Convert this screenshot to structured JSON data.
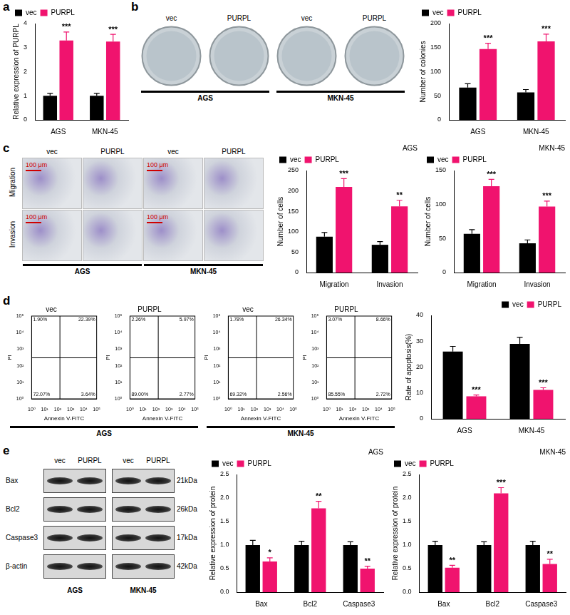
{
  "panel_letters": [
    "a",
    "b",
    "c",
    "d",
    "e"
  ],
  "chart_data": [
    {
      "type": "bar",
      "ylabel": "Relative expression of PURPL",
      "categories": [
        "AGS",
        "MKN-45"
      ],
      "series": [
        {
          "name": "vec",
          "color": "#000000",
          "values": [
            1,
            1
          ],
          "errors": [
            0.1,
            0.1
          ]
        },
        {
          "name": "PURPL",
          "color": "#f0136e",
          "values": [
            3.3,
            3.25
          ],
          "errors": [
            0.35,
            0.3
          ],
          "significance": [
            "***",
            "***"
          ]
        }
      ],
      "ylim": [
        0,
        4
      ],
      "yticks": [
        0,
        1,
        2,
        3,
        4
      ],
      "grid": false,
      "legend": "top-left"
    },
    {
      "type": "bar",
      "ylabel": "Number of colonies",
      "categories": [
        "AGS",
        "MKN-45"
      ],
      "series": [
        {
          "name": "vec",
          "color": "#000000",
          "values": [
            67,
            57
          ],
          "errors": [
            8,
            6
          ]
        },
        {
          "name": "PURPL",
          "color": "#f0136e",
          "values": [
            147,
            163
          ],
          "errors": [
            12,
            15
          ],
          "significance": [
            "***",
            "***"
          ]
        }
      ],
      "ylim": [
        0,
        200
      ],
      "yticks": [
        0,
        50,
        100,
        150,
        200
      ],
      "grid": false,
      "legend": "top-left"
    },
    {
      "type": "bar",
      "title": "AGS",
      "ylabel": "Number of cells",
      "categories": [
        "Migration",
        "Invasion"
      ],
      "series": [
        {
          "name": "vec",
          "color": "#000000",
          "values": [
            88,
            68
          ],
          "errors": [
            10,
            8
          ]
        },
        {
          "name": "PURPL",
          "color": "#f0136e",
          "values": [
            210,
            162
          ],
          "errors": [
            20,
            15
          ],
          "significance": [
            "***",
            "**"
          ]
        }
      ],
      "ylim": [
        0,
        250
      ],
      "yticks": [
        0,
        50,
        100,
        150,
        200,
        250
      ],
      "grid": false,
      "legend": "top-left"
    },
    {
      "type": "bar",
      "title": "MKN-45",
      "ylabel": "Number of cells",
      "categories": [
        "Migration",
        "Invasion"
      ],
      "series": [
        {
          "name": "vec",
          "color": "#000000",
          "values": [
            57,
            43
          ],
          "errors": [
            6,
            5
          ]
        },
        {
          "name": "PURPL",
          "color": "#f0136e",
          "values": [
            127,
            97
          ],
          "errors": [
            10,
            8
          ],
          "significance": [
            "***",
            "***"
          ]
        }
      ],
      "ylim": [
        0,
        150
      ],
      "yticks": [
        0,
        50,
        100,
        150
      ],
      "grid": false,
      "legend": "top-left"
    },
    {
      "type": "scatter",
      "title": "vec",
      "xlabel": "Annexin V-FITC",
      "ylabel": "PI",
      "log": true,
      "gate": {
        "x": 150,
        "y": 300
      },
      "quadrants": [
        {
          "position": "upper_left",
          "value": 1.9,
          "label": "1.90%"
        },
        {
          "position": "upper_right",
          "value": 22.39,
          "label": "22.39%"
        },
        {
          "position": "lower_left",
          "value": 72.07,
          "label": "72.07%"
        },
        {
          "position": "lower_right",
          "value": 3.64,
          "label": "3.64%"
        }
      ],
      "xlim": [
        1,
        100000
      ],
      "ylim": [
        1,
        100000
      ],
      "xticks": [
        {
          "value": 1,
          "label": "10⁰"
        },
        {
          "value": 10,
          "label": "10¹"
        },
        {
          "value": 100,
          "label": "10²"
        },
        {
          "value": 1000,
          "label": "10³"
        },
        {
          "value": 10000,
          "label": "10⁴"
        },
        {
          "value": 100000,
          "label": "10⁵"
        }
      ],
      "yticks": [
        {
          "value": 1,
          "label": "10⁰"
        },
        {
          "value": 10,
          "label": "10¹"
        },
        {
          "value": 100,
          "label": "10²"
        },
        {
          "value": 1000,
          "label": "10³"
        },
        {
          "value": 10000,
          "label": "10⁴"
        },
        {
          "value": 100000,
          "label": "10⁵"
        }
      ],
      "grid": false
    },
    {
      "type": "scatter",
      "title": "PURPL",
      "xlabel": "Annexin V-FITC",
      "ylabel": "PI",
      "log": true,
      "gate": {
        "x": 150,
        "y": 300
      },
      "quadrants": [
        {
          "position": "upper_left",
          "value": 2.26,
          "label": "2.26%"
        },
        {
          "position": "upper_right",
          "value": 5.97,
          "label": "5.97%"
        },
        {
          "position": "lower_left",
          "value": 89.0,
          "label": "89.00%"
        },
        {
          "position": "lower_right",
          "value": 2.77,
          "label": "2.77%"
        }
      ],
      "xlim": [
        1,
        100000
      ],
      "ylim": [
        1,
        100000
      ],
      "xticks": [
        {
          "value": 1,
          "label": "10⁰"
        },
        {
          "value": 10,
          "label": "10¹"
        },
        {
          "value": 100,
          "label": "10²"
        },
        {
          "value": 1000,
          "label": "10³"
        },
        {
          "value": 10000,
          "label": "10⁴"
        },
        {
          "value": 100000,
          "label": "10⁵"
        }
      ],
      "yticks": [
        {
          "value": 1,
          "label": "10⁰"
        },
        {
          "value": 10,
          "label": "10¹"
        },
        {
          "value": 100,
          "label": "10²"
        },
        {
          "value": 1000,
          "label": "10³"
        },
        {
          "value": 10000,
          "label": "10⁴"
        },
        {
          "value": 100000,
          "label": "10⁵"
        }
      ],
      "grid": false
    },
    {
      "type": "scatter",
      "title": "vec",
      "xlabel": "Annexin V-FITC",
      "ylabel": "PI",
      "log": true,
      "gate": {
        "x": 150,
        "y": 300
      },
      "quadrants": [
        {
          "position": "upper_left",
          "value": 1.78,
          "label": "1.78%"
        },
        {
          "position": "upper_right",
          "value": 26.34,
          "label": "26.34%"
        },
        {
          "position": "lower_left",
          "value": 69.32,
          "label": "69.32%"
        },
        {
          "position": "lower_right",
          "value": 2.56,
          "label": "2.56%"
        }
      ],
      "xlim": [
        1,
        100000
      ],
      "ylim": [
        1,
        100000
      ],
      "xticks": [
        {
          "value": 1,
          "label": "10⁰"
        },
        {
          "value": 10,
          "label": "10¹"
        },
        {
          "value": 100,
          "label": "10²"
        },
        {
          "value": 1000,
          "label": "10³"
        },
        {
          "value": 10000,
          "label": "10⁴"
        },
        {
          "value": 100000,
          "label": "10⁵"
        }
      ],
      "yticks": [
        {
          "value": 1,
          "label": "10⁰"
        },
        {
          "value": 10,
          "label": "10¹"
        },
        {
          "value": 100,
          "label": "10²"
        },
        {
          "value": 1000,
          "label": "10³"
        },
        {
          "value": 10000,
          "label": "10⁴"
        },
        {
          "value": 100000,
          "label": "10⁵"
        }
      ],
      "grid": false
    },
    {
      "type": "scatter",
      "title": "PURPL",
      "xlabel": "Annexin V-FITC",
      "ylabel": "PI",
      "log": true,
      "gate": {
        "x": 150,
        "y": 300
      },
      "quadrants": [
        {
          "position": "upper_left",
          "value": 3.07,
          "label": "3.07%"
        },
        {
          "position": "upper_right",
          "value": 8.66,
          "label": "8.66%"
        },
        {
          "position": "lower_left",
          "value": 85.55,
          "label": "85.55%"
        },
        {
          "position": "lower_right",
          "value": 2.72,
          "label": "2.72%"
        }
      ],
      "xlim": [
        1,
        100000
      ],
      "ylim": [
        1,
        100000
      ],
      "xticks": [
        {
          "value": 1,
          "label": "10⁰"
        },
        {
          "value": 10,
          "label": "10¹"
        },
        {
          "value": 100,
          "label": "10²"
        },
        {
          "value": 1000,
          "label": "10³"
        },
        {
          "value": 10000,
          "label": "10⁴"
        },
        {
          "value": 100000,
          "label": "10⁵"
        }
      ],
      "yticks": [
        {
          "value": 1,
          "label": "10⁰"
        },
        {
          "value": 10,
          "label": "10¹"
        },
        {
          "value": 100,
          "label": "10²"
        },
        {
          "value": 1000,
          "label": "10³"
        },
        {
          "value": 10000,
          "label": "10⁴"
        },
        {
          "value": 100000,
          "label": "10⁵"
        }
      ],
      "grid": false
    },
    {
      "type": "bar",
      "ylabel": "Rate of apoptosis(%)",
      "categories": [
        "AGS",
        "MKN-45"
      ],
      "series": [
        {
          "name": "vec",
          "color": "#000000",
          "values": [
            26,
            29
          ],
          "errors": [
            2,
            2.5
          ]
        },
        {
          "name": "PURPL",
          "color": "#f0136e",
          "values": [
            8.7,
            11.2
          ],
          "errors": [
            0.5,
            0.8
          ],
          "significance": [
            "***",
            "***"
          ]
        }
      ],
      "ylim": [
        0,
        40
      ],
      "yticks": [
        0,
        10,
        20,
        30,
        40
      ],
      "grid": false,
      "legend": "top-right"
    },
    {
      "type": "bar",
      "title": "AGS",
      "ylabel": "Relative expression of protein",
      "categories": [
        "Bax",
        "Bcl2",
        "Caspase3"
      ],
      "series": [
        {
          "name": "vec",
          "color": "#000000",
          "values": [
            1,
            1,
            1
          ],
          "errors": [
            0.1,
            0.08,
            0.07
          ]
        },
        {
          "name": "PURPL",
          "color": "#f0136e",
          "values": [
            0.65,
            1.78,
            0.5
          ],
          "errors": [
            0.08,
            0.15,
            0.05
          ],
          "significance": [
            "*",
            "**",
            "**"
          ]
        }
      ],
      "ylim": [
        0,
        2.5
      ],
      "yticks": [
        {
          "value": 0,
          "label": "0.0"
        },
        0.5,
        {
          "value": 1,
          "label": "1.0"
        },
        1.5,
        {
          "value": 2,
          "label": "2.0"
        },
        2.5
      ],
      "grid": false,
      "legend": "top-left"
    },
    {
      "type": "bar",
      "title": "MKN-45",
      "ylabel": "Relative expression of protein",
      "categories": [
        "Bax",
        "Bcl2",
        "Caspase3"
      ],
      "series": [
        {
          "name": "vec",
          "color": "#000000",
          "values": [
            1,
            1,
            1
          ],
          "errors": [
            0.08,
            0.07,
            0.08
          ]
        },
        {
          "name": "PURPL",
          "color": "#f0136e",
          "values": [
            0.52,
            2.1,
            0.6
          ],
          "errors": [
            0.05,
            0.12,
            0.1
          ],
          "significance": [
            "**",
            "***",
            "**"
          ]
        }
      ],
      "ylim": [
        0,
        2.5
      ],
      "yticks": [
        {
          "value": 0,
          "label": "0.0"
        },
        0.5,
        {
          "value": 1,
          "label": "1.0"
        },
        1.5,
        {
          "value": 2,
          "label": "2.0"
        },
        2.5
      ],
      "grid": false,
      "legend": "top-left"
    }
  ],
  "colony_plates": {
    "columns": [
      "vec",
      "PURPL",
      "vec",
      "PURPL"
    ],
    "groups": [
      "AGS",
      "MKN-45"
    ]
  },
  "transwell_images": {
    "columns": [
      "vec",
      "PURPL",
      "vec",
      "PURPL"
    ],
    "rows": [
      "Migration",
      "Invasion"
    ],
    "groups": [
      "AGS",
      "MKN-45"
    ],
    "scale_bar": "100 μm"
  },
  "flow_groups": [
    "AGS",
    "MKN-45"
  ],
  "western_blot": {
    "columns": [
      "vec",
      "PURPL",
      "vec",
      "PURPL"
    ],
    "rows": [
      {
        "label": "Bax",
        "size": "21kDa"
      },
      {
        "label": "Bcl2",
        "size": "26kDa"
      },
      {
        "label": "Caspase3",
        "size": "17kDa"
      },
      {
        "label": "β-actin",
        "size": "42kDa"
      }
    ],
    "groups": [
      "AGS",
      "MKN-45"
    ]
  }
}
